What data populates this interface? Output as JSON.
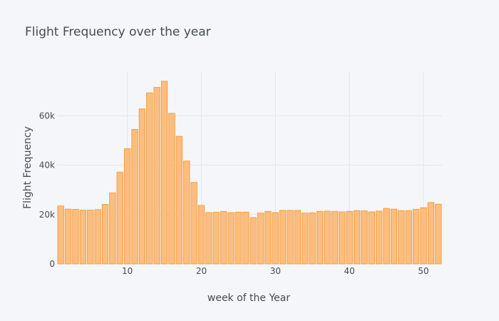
{
  "chart_data": {
    "type": "bar",
    "title": "Flight Frequency over the year",
    "xlabel": "week of the Year",
    "ylabel": "Flight Frequency",
    "xlim": [
      0.5,
      52.5
    ],
    "ylim": [
      0,
      78000
    ],
    "x_ticks": [
      10,
      20,
      30,
      40,
      50
    ],
    "y_ticks": [
      0,
      20000,
      40000,
      60000
    ],
    "y_tick_labels": [
      "0",
      "20k",
      "40k",
      "60k"
    ],
    "grid": true,
    "colors": {
      "bar_fill": "#fdbd7f",
      "bar_edge": "#f0962f",
      "background": "#f5f6f9"
    },
    "categories": [
      1,
      2,
      3,
      4,
      5,
      6,
      7,
      8,
      9,
      10,
      11,
      12,
      13,
      14,
      15,
      16,
      17,
      18,
      19,
      20,
      21,
      22,
      23,
      24,
      25,
      26,
      27,
      28,
      29,
      30,
      31,
      32,
      33,
      34,
      35,
      36,
      37,
      38,
      39,
      40,
      41,
      42,
      43,
      44,
      45,
      46,
      47,
      48,
      49,
      50,
      51,
      52
    ],
    "values": [
      23500,
      22200,
      22100,
      21800,
      21800,
      22000,
      24100,
      28800,
      37200,
      46700,
      54500,
      62800,
      69300,
      71500,
      74000,
      61000,
      51700,
      41700,
      33000,
      23700,
      20800,
      20900,
      21300,
      20800,
      21000,
      21000,
      18800,
      20600,
      21300,
      20800,
      21700,
      21700,
      21700,
      20600,
      20700,
      21300,
      21400,
      21300,
      21100,
      21300,
      21600,
      21500,
      21100,
      21400,
      22500,
      22200,
      21600,
      21600,
      22100,
      22800,
      24900,
      24200
    ]
  }
}
